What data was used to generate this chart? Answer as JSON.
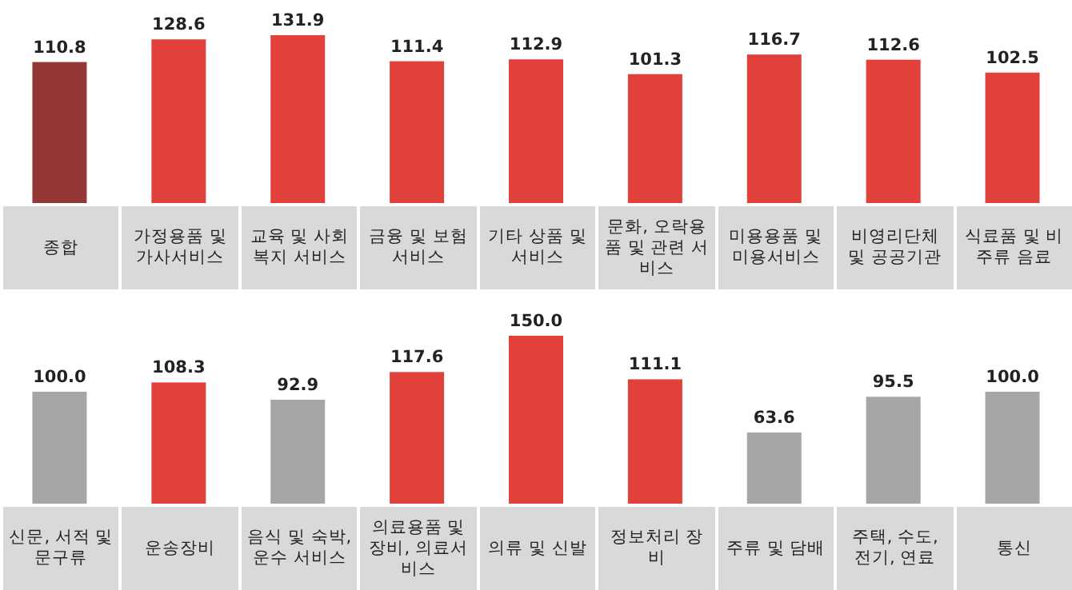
{
  "chart_data": [
    {
      "type": "bar",
      "categories": [
        "종합",
        "가정용품 및 가사서비스",
        "교육 및 사회복지 서비스",
        "금융 및 보험 서비스",
        "기타 상품 및 서비스",
        "문화, 오락용품 및 관련 서비스",
        "미용용품 및 미용서비스",
        "비영리단체 및 공공기관",
        "식료품 및 비주류 음료"
      ],
      "values": [
        110.8,
        128.6,
        131.9,
        111.4,
        112.9,
        101.3,
        116.7,
        112.6,
        102.5
      ],
      "colors": [
        "#953735",
        "#e2403a",
        "#e2403a",
        "#e2403a",
        "#e2403a",
        "#e2403a",
        "#e2403a",
        "#e2403a",
        "#e2403a"
      ],
      "data_labels": true
    },
    {
      "type": "bar",
      "categories": [
        "신문, 서적 및 문구류",
        "운송장비",
        "음식 및 숙박, 운수 서비스",
        "의료용품 및 장비, 의료서비스",
        "의류 및 신발",
        "정보처리 장비",
        "주류 및 담배",
        "주택, 수도, 전기, 연료",
        "통신"
      ],
      "values": [
        100.0,
        108.3,
        92.9,
        117.6,
        150.0,
        111.1,
        63.6,
        95.5,
        100.0
      ],
      "value_labels": [
        "100.0",
        "108.3",
        "92.9",
        "117.6",
        "150.0",
        "111.1",
        "63.6",
        "95.5",
        "100.0"
      ],
      "colors": [
        "#a6a6a6",
        "#e2403a",
        "#a6a6a6",
        "#e2403a",
        "#e2403a",
        "#e2403a",
        "#a6a6a6",
        "#a6a6a6",
        "#a6a6a6"
      ]
    }
  ]
}
